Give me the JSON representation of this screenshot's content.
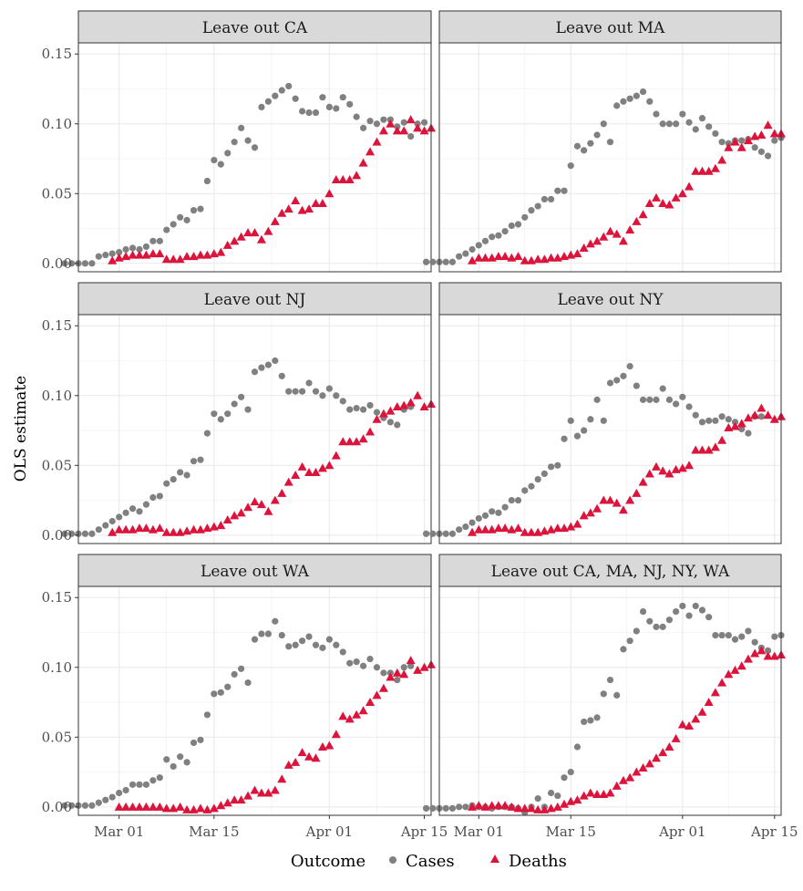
{
  "chart_data": {
    "type": "scatter",
    "ylabel": "OLS estimate",
    "xlabel": "",
    "ylim": [
      -0.006,
      0.158
    ],
    "x_start": "Feb 21",
    "x_ticks": [
      {
        "label": "Mar 01",
        "day": 9
      },
      {
        "label": "Mar 15",
        "day": 23
      },
      {
        "label": "Apr 01",
        "day": 40
      },
      {
        "label": "Apr 15",
        "day": 54
      }
    ],
    "y_ticks": [
      {
        "label": "0.00",
        "value": 0.0
      },
      {
        "label": "0.05",
        "value": 0.05
      },
      {
        "label": "0.10",
        "value": 0.1
      },
      {
        "label": "0.15",
        "value": 0.15
      }
    ],
    "grid": true,
    "legend": {
      "title": "Outcome",
      "position": "bottom",
      "entries": [
        {
          "label": "Cases",
          "shape": "circle",
          "color": "#808080"
        },
        {
          "label": "Deaths",
          "shape": "triangle",
          "color": "#dc143c"
        }
      ]
    },
    "panels": [
      {
        "title": "Leave out CA",
        "cases_start": 1,
        "cases": [
          0.0,
          0.0,
          0.0,
          0.0,
          0.0,
          0.005,
          0.006,
          0.007,
          0.008,
          0.01,
          0.011,
          0.01,
          0.012,
          0.016,
          0.016,
          0.024,
          0.028,
          0.033,
          0.031,
          0.038,
          0.039,
          0.059,
          0.074,
          0.071,
          0.079,
          0.087,
          0.097,
          0.088,
          0.083,
          0.112,
          0.116,
          0.12,
          0.124,
          0.127,
          0.118,
          0.109,
          0.108,
          0.108,
          0.119,
          0.112,
          0.111,
          0.119,
          0.114,
          0.105,
          0.097,
          0.102,
          0.1,
          0.103,
          0.103,
          0.098,
          0.101,
          0.091,
          0.1,
          0.101
        ],
        "deaths_start": 8,
        "deaths": [
          0.002,
          0.004,
          0.005,
          0.006,
          0.006,
          0.006,
          0.007,
          0.007,
          0.003,
          0.003,
          0.003,
          0.005,
          0.005,
          0.006,
          0.006,
          0.007,
          0.008,
          0.013,
          0.016,
          0.019,
          0.022,
          0.022,
          0.017,
          0.023,
          0.03,
          0.036,
          0.039,
          0.045,
          0.038,
          0.039,
          0.043,
          0.043,
          0.05,
          0.06,
          0.06,
          0.06,
          0.063,
          0.072,
          0.08,
          0.087,
          0.095,
          0.1,
          0.095,
          0.095,
          0.103,
          0.097,
          0.095,
          0.097
        ]
      },
      {
        "title": "Leave out MA",
        "cases_start": 1,
        "cases": [
          0.001,
          0.001,
          0.001,
          0.001,
          0.001,
          0.005,
          0.007,
          0.01,
          0.013,
          0.016,
          0.019,
          0.02,
          0.023,
          0.027,
          0.028,
          0.033,
          0.038,
          0.041,
          0.046,
          0.046,
          0.052,
          0.052,
          0.07,
          0.084,
          0.081,
          0.086,
          0.092,
          0.1,
          0.087,
          0.113,
          0.116,
          0.118,
          0.12,
          0.123,
          0.116,
          0.107,
          0.1,
          0.1,
          0.1,
          0.107,
          0.101,
          0.096,
          0.104,
          0.098,
          0.093,
          0.087,
          0.086,
          0.088,
          0.088,
          0.089,
          0.083,
          0.08,
          0.077,
          0.088,
          0.09
        ],
        "deaths_start": 8,
        "deaths": [
          0.002,
          0.004,
          0.004,
          0.004,
          0.005,
          0.005,
          0.004,
          0.005,
          0.002,
          0.002,
          0.003,
          0.003,
          0.004,
          0.004,
          0.005,
          0.006,
          0.007,
          0.011,
          0.014,
          0.016,
          0.019,
          0.023,
          0.021,
          0.016,
          0.024,
          0.03,
          0.035,
          0.043,
          0.047,
          0.043,
          0.042,
          0.047,
          0.05,
          0.055,
          0.066,
          0.066,
          0.066,
          0.068,
          0.074,
          0.083,
          0.087,
          0.083,
          0.088,
          0.091,
          0.092,
          0.099,
          0.093,
          0.093
        ]
      },
      {
        "title": "Leave out NJ",
        "cases_start": 1,
        "cases": [
          0.001,
          0.001,
          0.001,
          0.001,
          0.001,
          0.004,
          0.007,
          0.01,
          0.013,
          0.016,
          0.019,
          0.017,
          0.022,
          0.027,
          0.028,
          0.037,
          0.04,
          0.045,
          0.043,
          0.053,
          0.054,
          0.073,
          0.087,
          0.083,
          0.087,
          0.094,
          0.099,
          0.09,
          0.117,
          0.12,
          0.122,
          0.125,
          0.114,
          0.103,
          0.103,
          0.103,
          0.109,
          0.103,
          0.1,
          0.105,
          0.1,
          0.096,
          0.09,
          0.091,
          0.09,
          0.093,
          0.088,
          0.084,
          0.081,
          0.079,
          0.09,
          0.092
        ],
        "deaths_start": 8,
        "deaths": [
          0.002,
          0.004,
          0.004,
          0.004,
          0.005,
          0.005,
          0.004,
          0.005,
          0.002,
          0.002,
          0.002,
          0.003,
          0.004,
          0.004,
          0.005,
          0.006,
          0.007,
          0.011,
          0.014,
          0.016,
          0.02,
          0.024,
          0.022,
          0.017,
          0.025,
          0.03,
          0.038,
          0.043,
          0.049,
          0.045,
          0.045,
          0.048,
          0.05,
          0.057,
          0.067,
          0.067,
          0.067,
          0.069,
          0.074,
          0.083,
          0.087,
          0.089,
          0.092,
          0.093,
          0.095,
          0.1,
          0.092,
          0.094
        ]
      },
      {
        "title": "Leave out NY",
        "cases_start": 1,
        "cases": [
          0.001,
          0.001,
          0.001,
          0.001,
          0.001,
          0.004,
          0.006,
          0.009,
          0.012,
          0.014,
          0.017,
          0.016,
          0.02,
          0.025,
          0.025,
          0.032,
          0.035,
          0.04,
          0.044,
          0.049,
          0.05,
          0.069,
          0.082,
          0.071,
          0.075,
          0.083,
          0.097,
          0.082,
          0.109,
          0.111,
          0.114,
          0.121,
          0.107,
          0.097,
          0.097,
          0.097,
          0.105,
          0.097,
          0.094,
          0.099,
          0.092,
          0.086,
          0.081,
          0.082,
          0.082,
          0.085,
          0.083,
          0.081,
          0.076,
          0.073,
          0.085,
          0.085
        ],
        "deaths_start": 8,
        "deaths": [
          0.002,
          0.004,
          0.004,
          0.004,
          0.005,
          0.005,
          0.004,
          0.005,
          0.002,
          0.002,
          0.002,
          0.003,
          0.004,
          0.005,
          0.005,
          0.006,
          0.008,
          0.014,
          0.016,
          0.019,
          0.025,
          0.025,
          0.023,
          0.018,
          0.025,
          0.03,
          0.038,
          0.044,
          0.049,
          0.046,
          0.044,
          0.047,
          0.048,
          0.05,
          0.061,
          0.061,
          0.061,
          0.063,
          0.068,
          0.077,
          0.078,
          0.08,
          0.084,
          0.086,
          0.091,
          0.086,
          0.083,
          0.085
        ]
      },
      {
        "title": "Leave out WA",
        "cases_start": 1,
        "cases": [
          0.001,
          0.001,
          0.001,
          0.001,
          0.001,
          0.003,
          0.005,
          0.007,
          0.01,
          0.012,
          0.016,
          0.016,
          0.016,
          0.019,
          0.021,
          0.034,
          0.029,
          0.036,
          0.032,
          0.046,
          0.048,
          0.066,
          0.081,
          0.082,
          0.086,
          0.095,
          0.099,
          0.089,
          0.12,
          0.124,
          0.124,
          0.133,
          0.123,
          0.115,
          0.116,
          0.119,
          0.122,
          0.116,
          0.114,
          0.12,
          0.116,
          0.111,
          0.103,
          0.104,
          0.101,
          0.106,
          0.1,
          0.096,
          0.096,
          0.091,
          0.1,
          0.101
        ],
        "deaths_start": 9,
        "deaths": [
          0.0,
          0.0,
          0.0,
          0.0,
          0.0,
          0.0,
          0.0,
          -0.001,
          -0.001,
          0.0,
          -0.002,
          -0.002,
          -0.001,
          -0.002,
          -0.001,
          0.001,
          0.003,
          0.005,
          0.005,
          0.008,
          0.012,
          0.01,
          0.01,
          0.012,
          0.02,
          0.03,
          0.032,
          0.039,
          0.036,
          0.035,
          0.043,
          0.044,
          0.052,
          0.065,
          0.063,
          0.066,
          0.069,
          0.075,
          0.08,
          0.085,
          0.093,
          0.096,
          0.095,
          0.105,
          0.098,
          0.1,
          0.102
        ]
      },
      {
        "title": "Leave out CA, MA, NJ, NY, WA",
        "cases_start": 1,
        "cases": [
          -0.001,
          -0.001,
          -0.001,
          -0.001,
          -0.001,
          0.0,
          0.0,
          0.001,
          0.0,
          0.0,
          -0.001,
          0.0,
          0.0,
          0.0,
          -0.001,
          -0.004,
          0.0,
          0.006,
          0.0,
          0.01,
          0.008,
          0.021,
          0.025,
          0.043,
          0.061,
          0.062,
          0.064,
          0.081,
          0.091,
          0.08,
          0.113,
          0.119,
          0.126,
          0.14,
          0.133,
          0.129,
          0.129,
          0.134,
          0.14,
          0.144,
          0.137,
          0.144,
          0.141,
          0.136,
          0.123,
          0.123,
          0.123,
          0.12,
          0.122,
          0.126,
          0.118,
          0.114,
          0.112,
          0.122,
          0.123
        ],
        "deaths_start": 8,
        "deaths": [
          0.0,
          0.001,
          0.0,
          0.001,
          0.001,
          0.001,
          0.0,
          -0.001,
          -0.001,
          -0.001,
          -0.002,
          -0.002,
          -0.001,
          0.0,
          0.002,
          0.004,
          0.005,
          0.008,
          0.01,
          0.009,
          0.009,
          0.01,
          0.015,
          0.019,
          0.021,
          0.025,
          0.028,
          0.031,
          0.035,
          0.039,
          0.043,
          0.049,
          0.059,
          0.058,
          0.063,
          0.068,
          0.075,
          0.082,
          0.089,
          0.095,
          0.098,
          0.101,
          0.106,
          0.11,
          0.112,
          0.108,
          0.108,
          0.109
        ]
      }
    ]
  }
}
